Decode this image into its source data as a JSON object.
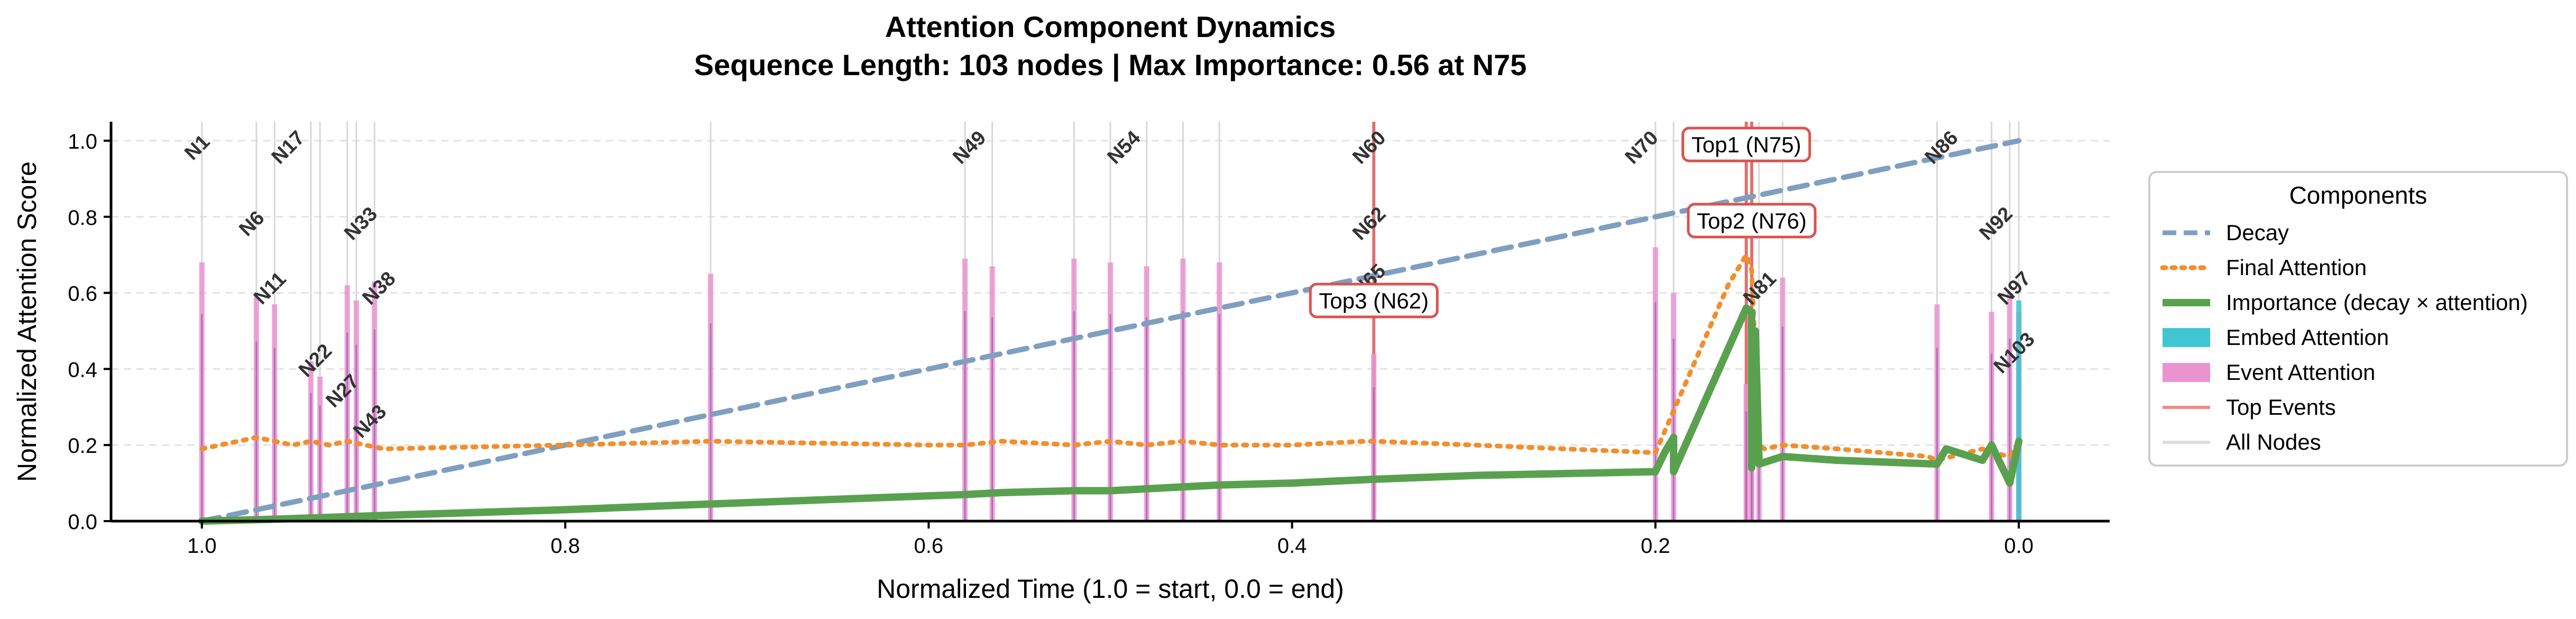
{
  "chart_data": {
    "type": "line",
    "title": "Attention Component Dynamics",
    "subtitle": "Sequence Length: 103 nodes | Max Importance: 0.56 at N75",
    "xlabel": "Normalized Time (1.0 = start, 0.0 = end)",
    "ylabel": "Normalized Attention Score",
    "xlim": [
      1.05,
      -0.05
    ],
    "ylim": [
      0,
      1.05
    ],
    "x_reversed": true,
    "xticks": [
      1.0,
      0.8,
      0.6,
      0.4,
      0.2,
      0.0
    ],
    "xtick_labels": [
      "1.0",
      "0.8",
      "0.6",
      "0.4",
      "0.2",
      "0.0"
    ],
    "yticks": [
      0.0,
      0.2,
      0.4,
      0.6,
      0.8,
      1.0
    ],
    "ytick_labels": [
      "0.0",
      "0.2",
      "0.4",
      "0.6",
      "0.8",
      "1.0"
    ],
    "grid": "horizontal dashed",
    "legend": {
      "title": "Components",
      "placement": "outside right",
      "entries": [
        {
          "label": "Decay",
          "style": "dashed",
          "color": "#7f9fc0"
        },
        {
          "label": "Final Attention",
          "style": "dotted",
          "color": "#f28e2b"
        },
        {
          "label": "Importance (decay × attention)",
          "style": "solid",
          "color": "#59a14f"
        },
        {
          "label": "Embed Attention",
          "style": "patch",
          "color": "#3ec7d3"
        },
        {
          "label": "Event Attention",
          "style": "patch",
          "color": "#e994cf"
        },
        {
          "label": "Top Events",
          "style": "solid-thin",
          "color": "#ef8a8a"
        },
        {
          "label": "All Nodes",
          "style": "solid-thin",
          "color": "#dddddd"
        }
      ]
    },
    "series": [
      {
        "name": "Decay",
        "x": [
          1.0,
          0.0
        ],
        "values": [
          0.0,
          1.0
        ]
      },
      {
        "name": "Final Attention",
        "x": [
          1.0,
          0.99,
          0.97,
          0.96,
          0.95,
          0.94,
          0.93,
          0.92,
          0.91,
          0.9,
          0.8,
          0.72,
          0.6,
          0.58,
          0.56,
          0.52,
          0.5,
          0.48,
          0.46,
          0.44,
          0.4,
          0.36,
          0.355,
          0.3,
          0.2,
          0.19,
          0.16,
          0.15,
          0.147,
          0.143,
          0.14,
          0.13,
          0.1,
          0.05,
          0.045,
          0.02,
          0.015,
          0.005,
          0.0
        ],
        "values": [
          0.19,
          0.2,
          0.22,
          0.21,
          0.2,
          0.21,
          0.2,
          0.21,
          0.2,
          0.19,
          0.2,
          0.21,
          0.2,
          0.2,
          0.21,
          0.2,
          0.21,
          0.2,
          0.21,
          0.2,
          0.2,
          0.21,
          0.21,
          0.2,
          0.18,
          0.29,
          0.62,
          0.7,
          0.66,
          0.2,
          0.19,
          0.2,
          0.19,
          0.17,
          0.16,
          0.19,
          0.18,
          0.17,
          0.21
        ]
      },
      {
        "name": "Importance (decay × attention)",
        "x": [
          1.0,
          0.96,
          0.9,
          0.8,
          0.72,
          0.58,
          0.56,
          0.52,
          0.5,
          0.48,
          0.46,
          0.44,
          0.4,
          0.355,
          0.3,
          0.2,
          0.195,
          0.19,
          0.19,
          0.15,
          0.147,
          0.147,
          0.145,
          0.143,
          0.143,
          0.13,
          0.1,
          0.045,
          0.04,
          0.02,
          0.015,
          0.005,
          0.0
        ],
        "values": [
          0.0,
          0.005,
          0.015,
          0.03,
          0.045,
          0.07,
          0.075,
          0.08,
          0.08,
          0.085,
          0.09,
          0.095,
          0.1,
          0.11,
          0.12,
          0.13,
          0.18,
          0.22,
          0.13,
          0.56,
          0.55,
          0.14,
          0.5,
          0.16,
          0.15,
          0.17,
          0.16,
          0.15,
          0.19,
          0.16,
          0.2,
          0.1,
          0.21
        ]
      }
    ],
    "node_spikes_x": [
      1.0,
      0.97,
      0.96,
      0.94,
      0.935,
      0.92,
      0.915,
      0.905,
      0.72,
      0.58,
      0.565,
      0.52,
      0.5,
      0.48,
      0.46,
      0.44,
      0.355,
      0.2,
      0.19,
      0.15,
      0.147,
      0.143,
      0.13,
      0.045,
      0.015,
      0.005,
      0.0
    ],
    "node_spikes_embed": [
      0.0,
      0.0,
      0.0,
      0.0,
      0.0,
      0.0,
      0.0,
      0.0,
      0.0,
      0.0,
      0.0,
      0.0,
      0.0,
      0.0,
      0.0,
      0.0,
      0.0,
      0.0,
      0.0,
      0.0,
      0.0,
      0.0,
      0.0,
      0.0,
      0.0,
      0.0,
      0.58
    ],
    "node_spikes_event": [
      0.68,
      0.59,
      0.57,
      0.42,
      0.38,
      0.62,
      0.58,
      0.63,
      0.65,
      0.69,
      0.67,
      0.69,
      0.68,
      0.67,
      0.69,
      0.68,
      0.44,
      0.72,
      0.6,
      0.36,
      0.42,
      0.24,
      0.64,
      0.57,
      0.55,
      0.6,
      0.55
    ],
    "top_events": [
      {
        "label": "Top1 (N75)",
        "x": 0.15,
        "y": 0.99
      },
      {
        "label": "Top2 (N76)",
        "x": 0.147,
        "y": 0.79
      },
      {
        "label": "Top3 (N62)",
        "x": 0.355,
        "y": 0.58
      }
    ],
    "node_labels": [
      {
        "label": "N1",
        "x": 1.0,
        "y": 0.97
      },
      {
        "label": "N6",
        "x": 0.97,
        "y": 0.77
      },
      {
        "label": "N11",
        "x": 0.96,
        "y": 0.6
      },
      {
        "label": "N17",
        "x": 0.95,
        "y": 0.97
      },
      {
        "label": "N22",
        "x": 0.935,
        "y": 0.41
      },
      {
        "label": "N27",
        "x": 0.92,
        "y": 0.33
      },
      {
        "label": "N33",
        "x": 0.91,
        "y": 0.77
      },
      {
        "label": "N38",
        "x": 0.9,
        "y": 0.6
      },
      {
        "label": "N43",
        "x": 0.905,
        "y": 0.25
      },
      {
        "label": "N49",
        "x": 0.575,
        "y": 0.97
      },
      {
        "label": "N54",
        "x": 0.49,
        "y": 0.97
      },
      {
        "label": "N60",
        "x": 0.355,
        "y": 0.97
      },
      {
        "label": "N62",
        "x": 0.355,
        "y": 0.77
      },
      {
        "label": "N65",
        "x": 0.355,
        "y": 0.62
      },
      {
        "label": "N70",
        "x": 0.205,
        "y": 0.97
      },
      {
        "label": "N81",
        "x": 0.14,
        "y": 0.6
      },
      {
        "label": "N86",
        "x": 0.04,
        "y": 0.97
      },
      {
        "label": "N92",
        "x": 0.01,
        "y": 0.77
      },
      {
        "label": "N97",
        "x": 0.0,
        "y": 0.6
      },
      {
        "label": "N103",
        "x": 0.0,
        "y": 0.43
      }
    ]
  }
}
